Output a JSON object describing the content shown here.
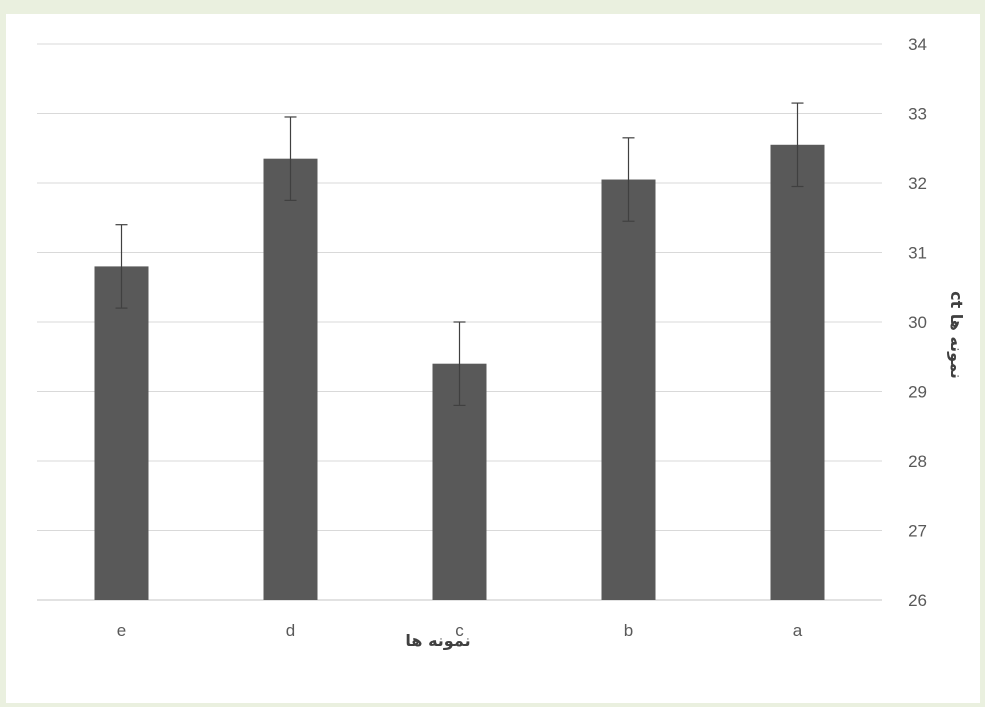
{
  "chart_data": {
    "type": "bar",
    "categories": [
      "e",
      "d",
      "c",
      "b",
      "a"
    ],
    "values": [
      30.8,
      32.35,
      29.4,
      32.05,
      32.55
    ],
    "errors": [
      0.6,
      0.6,
      0.6,
      0.6,
      0.6
    ],
    "ylim": [
      26,
      34
    ],
    "yticks": [
      "26",
      "27",
      "28",
      "29",
      "30",
      "31",
      "32",
      "33",
      "34"
    ],
    "xlabel": "نمونه ها",
    "ylabel": "ct نمونه ها",
    "y_axis_side": "right",
    "grid": true,
    "legend": "none",
    "colors": {
      "bar": "#595959",
      "error_bar": "#404040",
      "grid": "#d9d9d9",
      "text": "#595959",
      "page_background": "#eaf0df"
    }
  }
}
